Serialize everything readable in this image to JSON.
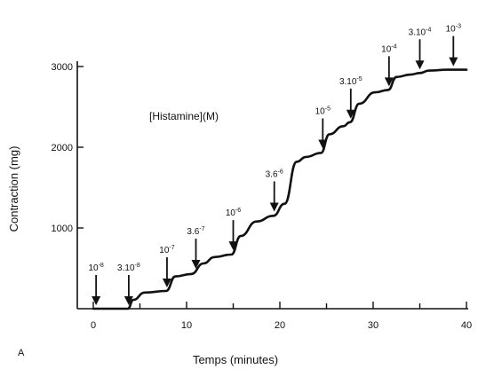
{
  "chart_data": {
    "type": "line",
    "title": "",
    "panel_label": "A",
    "annotation": "[Histamine](M)",
    "xlabel": "Temps (minutes)",
    "ylabel": "Contraction (mg)",
    "xlim": [
      0,
      40
    ],
    "ylim": [
      0,
      3000
    ],
    "x_ticks": [
      0,
      10,
      20,
      30,
      40
    ],
    "x_tick_labels": [
      "0",
      "10",
      "20",
      "30",
      "40"
    ],
    "y_ticks": [
      1000,
      2000,
      3000
    ],
    "y_tick_labels": [
      "1000",
      "2000",
      "3000"
    ],
    "grid": false,
    "legend": "none",
    "series": [
      {
        "x": [
          0,
          3.7,
          4.3,
          5.5,
          7.8,
          8.8,
          10.5,
          11.8,
          13.0,
          14.8,
          15.8,
          17.5,
          19.3,
          20.5,
          21.8,
          22.8,
          24.4,
          25.3,
          26.8,
          27.5,
          28.5,
          30.2,
          31.6,
          32.5,
          34.0,
          35.0,
          36.0,
          38.0,
          40.0
        ],
        "y": [
          0,
          0,
          110,
          200,
          220,
          400,
          430,
          560,
          640,
          670,
          900,
          1080,
          1150,
          1300,
          1820,
          1880,
          1930,
          2160,
          2260,
          2310,
          2540,
          2680,
          2710,
          2870,
          2900,
          2920,
          2950,
          2960,
          2960
        ]
      }
    ],
    "additions": [
      {
        "label": "10",
        "exp": "-8",
        "x": 0.3,
        "y": 0
      },
      {
        "label": "3.10",
        "exp": "-8",
        "x": 3.8,
        "y": 0
      },
      {
        "label": "10",
        "exp": "-7",
        "x": 7.9,
        "y": 220
      },
      {
        "label": "3.6",
        "exp": "-7",
        "x": 11.0,
        "y": 450
      },
      {
        "label": "10",
        "exp": "-6",
        "x": 15.0,
        "y": 680
      },
      {
        "label": "3.6",
        "exp": "-6",
        "x": 19.4,
        "y": 1160
      },
      {
        "label": "10",
        "exp": "-5",
        "x": 24.6,
        "y": 1940
      },
      {
        "label": "3.10",
        "exp": "-5",
        "x": 27.6,
        "y": 2310
      },
      {
        "label": "10",
        "exp": "-4",
        "x": 31.7,
        "y": 2710
      },
      {
        "label": "3.10",
        "exp": "-4",
        "x": 35.0,
        "y": 2920
      },
      {
        "label": "10",
        "exp": "-3",
        "x": 38.6,
        "y": 2960
      }
    ]
  }
}
